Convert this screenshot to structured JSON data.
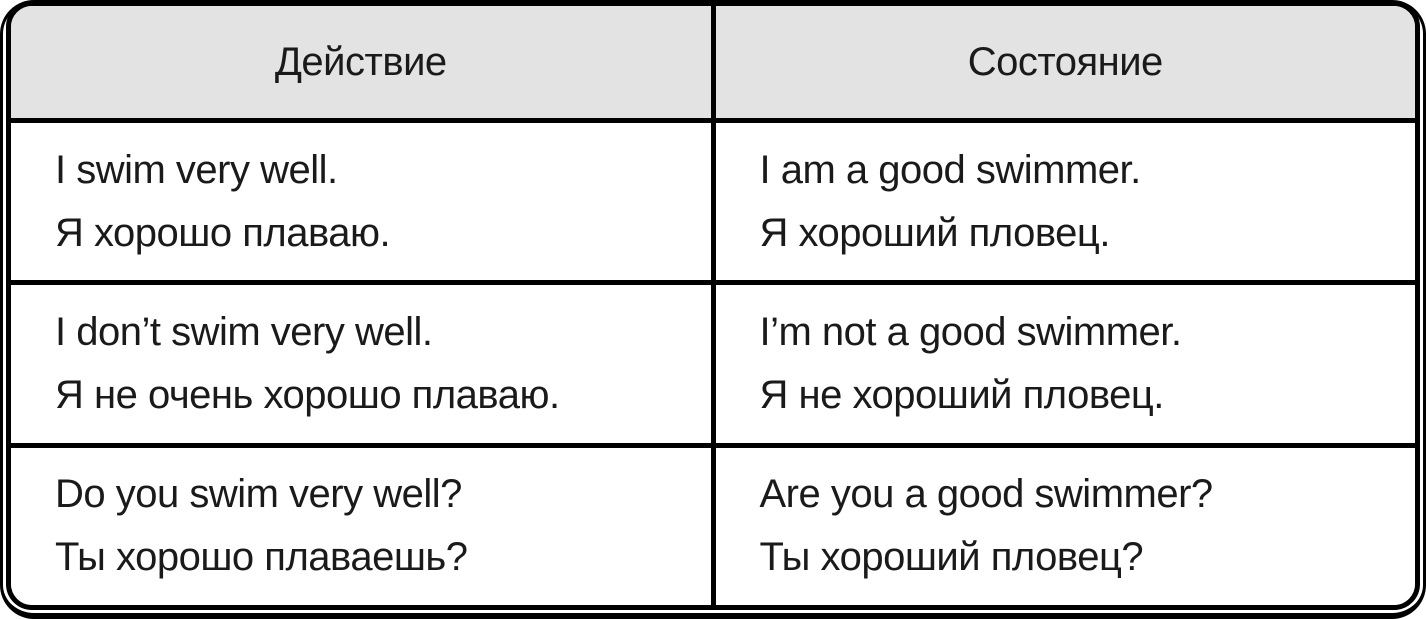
{
  "table": {
    "headers": [
      {
        "label": "Действие"
      },
      {
        "label": "Состояние"
      }
    ],
    "rows": [
      {
        "action": {
          "en": "I swim very well.",
          "ru": "Я хорошо плаваю."
        },
        "state": {
          "en": "I am a good swimmer.",
          "ru": "Я хороший пловец."
        }
      },
      {
        "action": {
          "en": "I don’t swim very well.",
          "ru": "Я не очень хорошо плаваю."
        },
        "state": {
          "en": "I’m not a good swimmer.",
          "ru": "Я не хороший пловец."
        }
      },
      {
        "action": {
          "en": "Do you swim very well?",
          "ru": "Ты хорошо плаваешь?"
        },
        "state": {
          "en": "Are you a good swimmer?",
          "ru": "Ты хороший пловец?"
        }
      }
    ]
  },
  "colors": {
    "header_bg": "#E3E3E3",
    "border": "#000000",
    "text": "#1A1A1A",
    "page_bg": "#FFFFFF"
  }
}
